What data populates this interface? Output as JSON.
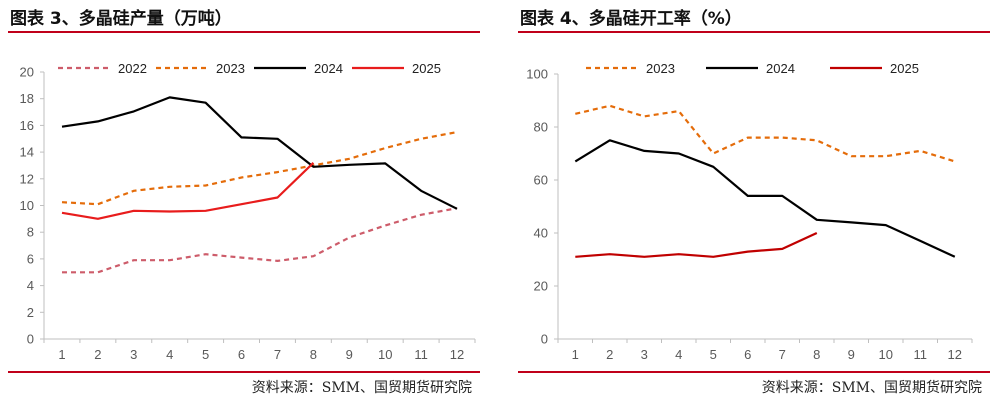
{
  "charts": {
    "left": {
      "title": "图表 3、多晶硅产量（万吨）",
      "source": "资料来源：SMM、国贸期货研究院"
    },
    "right": {
      "title": "图表 4、多晶硅开工率（%）",
      "source": "资料来源：SMM、国贸期货研究院"
    }
  },
  "chart_data": [
    {
      "type": "line",
      "title": "图表 3、多晶硅产量（万吨）",
      "xlabel": "",
      "ylabel": "",
      "x": [
        1,
        2,
        3,
        4,
        5,
        6,
        7,
        8,
        9,
        10,
        11,
        12
      ],
      "ylim": [
        0,
        20
      ],
      "yticks": [
        0,
        2,
        4,
        6,
        8,
        10,
        12,
        14,
        16,
        18,
        20
      ],
      "grid": false,
      "legend": "top",
      "series": [
        {
          "name": "2022",
          "color": "#cd5c6a",
          "dash": "dashed",
          "values": [
            5.0,
            5.0,
            5.9,
            5.9,
            6.35,
            6.1,
            5.85,
            6.2,
            7.6,
            8.5,
            9.3,
            9.8
          ]
        },
        {
          "name": "2023",
          "color": "#e46c0a",
          "dash": "dashed",
          "values": [
            10.25,
            10.1,
            11.1,
            11.4,
            11.5,
            12.1,
            12.5,
            13.0,
            13.5,
            14.3,
            15.0,
            15.5
          ]
        },
        {
          "name": "2024",
          "color": "#000000",
          "dash": "solid",
          "values": [
            15.9,
            16.3,
            17.05,
            18.1,
            17.7,
            15.1,
            15.0,
            12.9,
            13.05,
            13.15,
            11.1,
            9.75
          ]
        },
        {
          "name": "2025",
          "color": "#e81c1c",
          "dash": "solid",
          "values": [
            9.45,
            9.0,
            9.6,
            9.55,
            9.6,
            10.1,
            10.6,
            13.2,
            null,
            null,
            null,
            null
          ]
        }
      ]
    },
    {
      "type": "line",
      "title": "图表 4、多晶硅开工率（%）",
      "xlabel": "",
      "ylabel": "",
      "x": [
        1,
        2,
        3,
        4,
        5,
        6,
        7,
        8,
        9,
        10,
        11,
        12
      ],
      "ylim": [
        0,
        100
      ],
      "yticks": [
        0,
        20,
        40,
        60,
        80,
        100
      ],
      "grid": false,
      "legend": "top",
      "series": [
        {
          "name": "2023",
          "color": "#e46c0a",
          "dash": "dashed",
          "values": [
            85,
            88,
            84,
            86,
            70,
            76,
            76,
            75,
            69,
            69,
            71,
            67
          ]
        },
        {
          "name": "2024",
          "color": "#000000",
          "dash": "solid",
          "values": [
            67,
            75,
            71,
            70,
            65,
            54,
            54,
            45,
            44,
            43,
            37,
            31
          ]
        },
        {
          "name": "2025",
          "color": "#c00000",
          "dash": "solid",
          "values": [
            31,
            32,
            31,
            32,
            31,
            33,
            34,
            40,
            null,
            null,
            null,
            null
          ]
        }
      ]
    }
  ]
}
